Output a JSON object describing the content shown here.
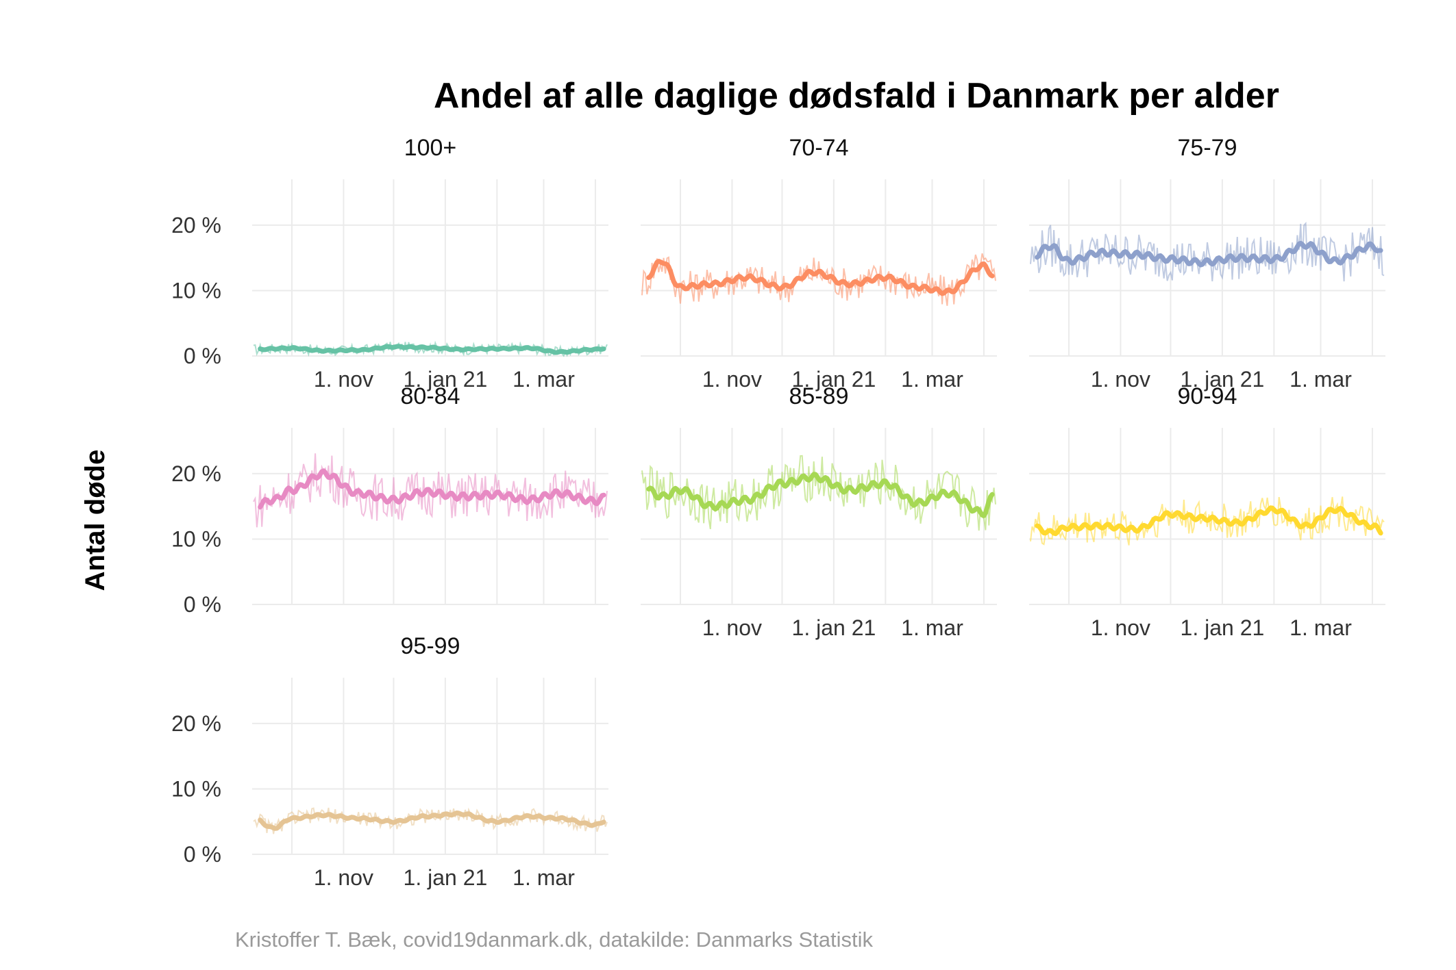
{
  "chart_data": {
    "type": "line",
    "title": "Andel af alle daglige dødsfald i Danmark per alder",
    "ylabel": "Antal døde",
    "caption": "Kristoffer T. Bæk, covid19danmark.dk, datakilde: Danmarks Statistik",
    "y_ticks": [
      "0 %",
      "10 %",
      "20 %"
    ],
    "x_ticks": [
      "1. nov",
      "1. jan 21",
      "1. mar"
    ],
    "ylim": [
      0,
      0.27
    ],
    "x_range": [
      "2020-09-08",
      "2021-04-08"
    ],
    "grid": true,
    "legend": "none",
    "series": [
      {
        "name": "100+",
        "color": "#66c2a5",
        "x": [
          "2020-09-08",
          "2020-10-01",
          "2020-10-20",
          "2020-11-10",
          "2020-12-01",
          "2020-12-20",
          "2021-01-10",
          "2021-02-01",
          "2021-02-20",
          "2021-03-10",
          "2021-04-01",
          "2021-04-08"
        ],
        "smooth": [
          0.01,
          0.012,
          0.008,
          0.009,
          0.014,
          0.013,
          0.01,
          0.011,
          0.012,
          0.006,
          0.01,
          0.012
        ]
      },
      {
        "name": "70-74",
        "color": "#fc8d62",
        "x": [
          "2020-09-08",
          "2020-09-20",
          "2020-10-01",
          "2020-10-20",
          "2020-11-10",
          "2020-12-01",
          "2020-12-20",
          "2021-01-10",
          "2021-02-01",
          "2021-02-20",
          "2021-03-10",
          "2021-04-01",
          "2021-04-08"
        ],
        "smooth": [
          0.112,
          0.145,
          0.105,
          0.11,
          0.12,
          0.105,
          0.128,
          0.11,
          0.12,
          0.105,
          0.098,
          0.138,
          0.118
        ]
      },
      {
        "name": "75-79",
        "color": "#8da0cb",
        "x": [
          "2020-09-08",
          "2020-09-20",
          "2020-10-01",
          "2020-10-20",
          "2020-11-10",
          "2020-12-01",
          "2020-12-20",
          "2021-01-10",
          "2021-02-01",
          "2021-02-20",
          "2021-03-10",
          "2021-04-01",
          "2021-04-08"
        ],
        "smooth": [
          0.15,
          0.168,
          0.145,
          0.158,
          0.155,
          0.148,
          0.143,
          0.15,
          0.148,
          0.17,
          0.145,
          0.168,
          0.155
        ]
      },
      {
        "name": "80-84",
        "color": "#e78ac3",
        "x": [
          "2020-09-08",
          "2020-09-20",
          "2020-10-01",
          "2020-10-20",
          "2020-11-10",
          "2020-12-01",
          "2020-12-20",
          "2021-01-10",
          "2021-02-01",
          "2021-02-20",
          "2021-03-10",
          "2021-04-01",
          "2021-04-08"
        ],
        "smooth": [
          0.15,
          0.16,
          0.175,
          0.2,
          0.17,
          0.16,
          0.172,
          0.165,
          0.168,
          0.16,
          0.17,
          0.158,
          0.165
        ]
      },
      {
        "name": "85-89",
        "color": "#a6d854",
        "x": [
          "2020-09-08",
          "2020-09-20",
          "2020-10-01",
          "2020-10-20",
          "2020-11-10",
          "2020-12-01",
          "2020-12-20",
          "2021-01-10",
          "2021-02-01",
          "2021-02-20",
          "2021-03-10",
          "2021-04-01",
          "2021-04-08"
        ],
        "smooth": [
          0.18,
          0.165,
          0.175,
          0.15,
          0.16,
          0.185,
          0.195,
          0.175,
          0.185,
          0.155,
          0.17,
          0.14,
          0.175
        ]
      },
      {
        "name": "90-94",
        "color": "#ffd92f",
        "x": [
          "2020-09-08",
          "2020-09-20",
          "2020-10-01",
          "2020-10-20",
          "2020-11-10",
          "2020-12-01",
          "2020-12-20",
          "2021-01-10",
          "2021-02-01",
          "2021-02-20",
          "2021-03-10",
          "2021-04-01",
          "2021-04-08"
        ],
        "smooth": [
          0.12,
          0.11,
          0.118,
          0.12,
          0.115,
          0.138,
          0.132,
          0.125,
          0.145,
          0.12,
          0.145,
          0.12,
          0.11
        ]
      },
      {
        "name": "95-99",
        "color": "#e5c494",
        "x": [
          "2020-09-08",
          "2020-09-20",
          "2020-10-01",
          "2020-10-20",
          "2020-11-10",
          "2020-12-01",
          "2020-12-20",
          "2021-01-10",
          "2021-02-01",
          "2021-02-20",
          "2021-03-10",
          "2021-04-01",
          "2021-04-08"
        ],
        "smooth": [
          0.055,
          0.04,
          0.055,
          0.06,
          0.055,
          0.05,
          0.058,
          0.062,
          0.05,
          0.058,
          0.055,
          0.045,
          0.052
        ]
      }
    ]
  }
}
